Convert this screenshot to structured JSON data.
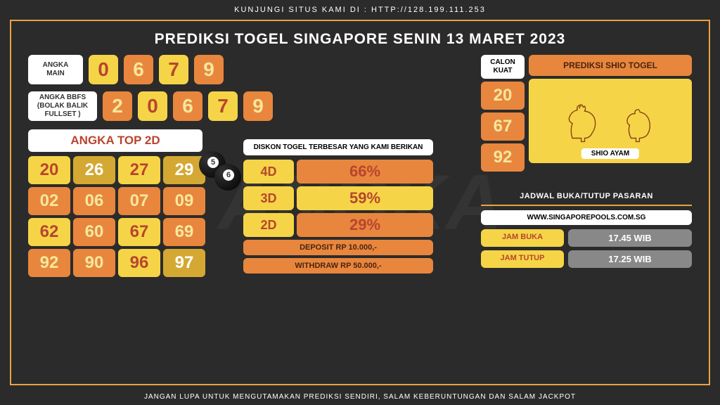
{
  "top_text": "KUNJUNGI SITUS KAMI DI : HTTP://128.199.111.253",
  "main_title": "PREDIKSI TOGEL SINGAPORE SENIN 13 MARET 2023",
  "angka_main": {
    "label": "ANGKA MAIN",
    "nums": [
      "0",
      "6",
      "7",
      "9"
    ],
    "colors": [
      "y",
      "o",
      "y",
      "o"
    ]
  },
  "bbfs": {
    "label": "ANGKA BBFS (BOLAK BALIK FULLSET )",
    "nums": [
      "2",
      "0",
      "6",
      "7",
      "9"
    ],
    "colors": [
      "o",
      "y",
      "o",
      "y",
      "o"
    ]
  },
  "top2d": {
    "header": "ANGKA TOP 2D",
    "cells": [
      {
        "v": "20",
        "c": "y"
      },
      {
        "v": "26",
        "c": "dy"
      },
      {
        "v": "27",
        "c": "y"
      },
      {
        "v": "29",
        "c": "dy"
      },
      {
        "v": "02",
        "c": "o"
      },
      {
        "v": "06",
        "c": "o"
      },
      {
        "v": "07",
        "c": "o"
      },
      {
        "v": "09",
        "c": "o"
      },
      {
        "v": "62",
        "c": "y"
      },
      {
        "v": "60",
        "c": "o"
      },
      {
        "v": "67",
        "c": "y"
      },
      {
        "v": "69",
        "c": "o"
      },
      {
        "v": "92",
        "c": "o"
      },
      {
        "v": "90",
        "c": "o"
      },
      {
        "v": "96",
        "c": "y"
      },
      {
        "v": "97",
        "c": "dy"
      }
    ]
  },
  "diskon": {
    "title": "DISKON TOGEL TERBESAR YANG KAMI BERIKAN",
    "rows": [
      {
        "l": "4D",
        "v": "66%",
        "c": "o"
      },
      {
        "l": "3D",
        "v": "59%",
        "c": "y"
      },
      {
        "l": "2D",
        "v": "29%",
        "c": "o"
      }
    ],
    "deposit": "DEPOSIT RP 10.000,-",
    "withdraw": "WITHDRAW RP 50.000,-"
  },
  "calon": {
    "label": "CALON KUAT",
    "nums": [
      "20",
      "67",
      "92"
    ]
  },
  "shio": {
    "header": "PREDIKSI SHIO TOGEL",
    "name": "SHIO AYAM"
  },
  "schedule": {
    "title": "JADWAL BUKA/TUTUP PASARAN",
    "url": "WWW.SINGAPOREPOOLS.COM.SG",
    "buka_l": "JAM BUKA",
    "buka_v": "17.45 WIB",
    "tutup_l": "JAM TUTUP",
    "tutup_v": "17.25 WIB"
  },
  "bottom_text": "JANGAN LUPA UNTUK MENGUTAMAKAN PREDIKSI SENDIRI, SALAM KEBERUNTUNGAN DAN SALAM JACKPOT",
  "watermark": "ANGKA"
}
